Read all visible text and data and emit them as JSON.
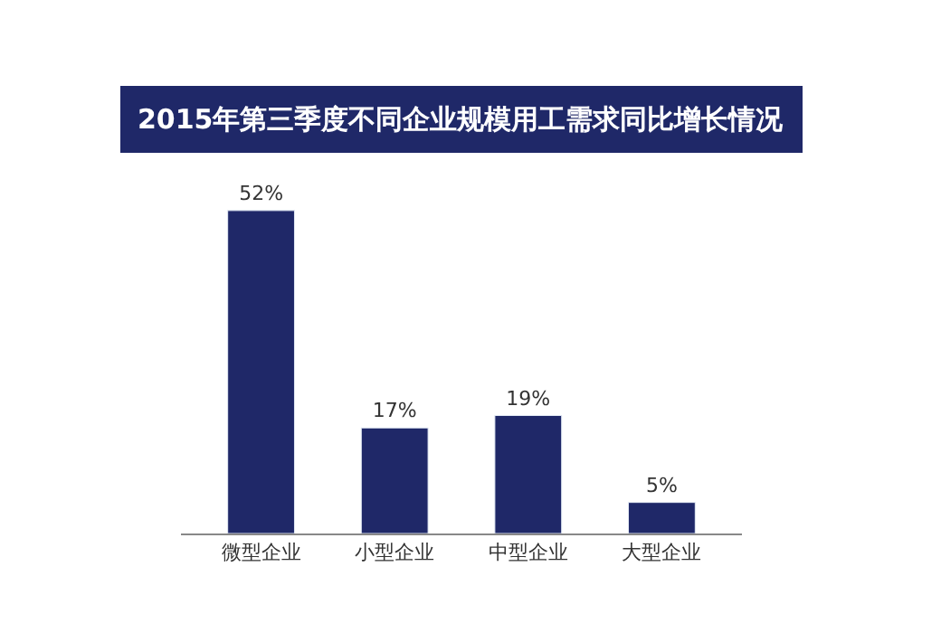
{
  "chart_data": {
    "type": "bar",
    "title": "2015年第三季度不同企业规模用工需求同比增长情况",
    "categories": [
      "微型企业",
      "小型企业",
      "中型企业",
      "大型企业"
    ],
    "values": [
      52,
      17,
      19,
      5
    ],
    "value_labels": [
      "52%",
      "17%",
      "19%",
      "5%"
    ],
    "color": "#1f2868",
    "tick_labels": "x"
  }
}
